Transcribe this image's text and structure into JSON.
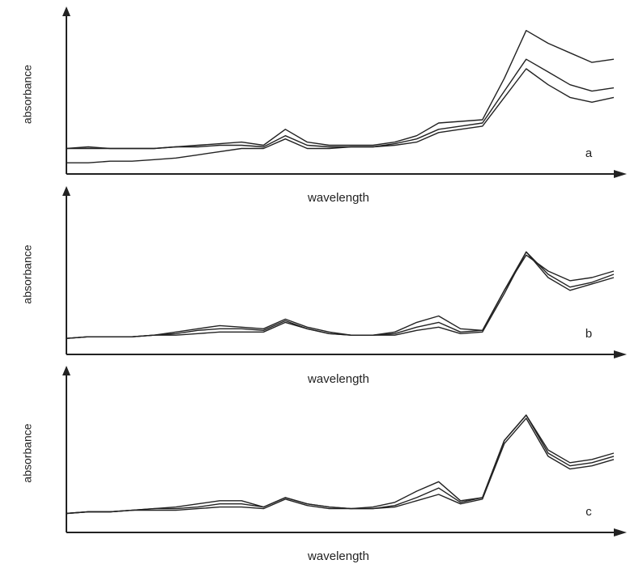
{
  "chart_data": [
    {
      "type": "line",
      "x_label": "wavelength",
      "y_label": "absorbance",
      "annotation": "a",
      "x": [
        0,
        4,
        8,
        12,
        16,
        20,
        24,
        28,
        32,
        36,
        40,
        44,
        48,
        52,
        56,
        60,
        64,
        68,
        72,
        76,
        80,
        84,
        88,
        92,
        96,
        100
      ],
      "xlim": [
        0,
        100
      ],
      "ylim": [
        0,
        100
      ],
      "series": [
        {
          "color": "#222222",
          "values": [
            16,
            17,
            16,
            16,
            16,
            17,
            18,
            19,
            20,
            18,
            28,
            20,
            18,
            18,
            18,
            20,
            24,
            32,
            33,
            34,
            60,
            90,
            82,
            76,
            70,
            72
          ]
        },
        {
          "color": "#222222",
          "values": [
            16,
            16,
            16,
            16,
            16,
            17,
            17,
            18,
            18,
            17,
            24,
            18,
            17,
            17,
            17,
            19,
            22,
            28,
            30,
            32,
            52,
            72,
            64,
            56,
            52,
            54
          ]
        },
        {
          "color": "#222222",
          "values": [
            7,
            7,
            8,
            8,
            9,
            10,
            12,
            14,
            16,
            16,
            22,
            16,
            16,
            17,
            17,
            18,
            20,
            26,
            28,
            30,
            48,
            66,
            56,
            48,
            45,
            48
          ]
        }
      ]
    },
    {
      "type": "line",
      "x_label": "wavelength",
      "y_label": "absorbance",
      "annotation": "b",
      "x": [
        0,
        4,
        8,
        12,
        16,
        20,
        24,
        28,
        32,
        36,
        40,
        44,
        48,
        52,
        56,
        60,
        64,
        68,
        72,
        76,
        80,
        84,
        88,
        92,
        96,
        100
      ],
      "xlim": [
        0,
        100
      ],
      "ylim": [
        0,
        100
      ],
      "series": [
        {
          "color": "#222222",
          "values": [
            10,
            11,
            11,
            11,
            12,
            14,
            16,
            18,
            17,
            16,
            22,
            17,
            14,
            12,
            12,
            14,
            20,
            24,
            16,
            15,
            40,
            62,
            52,
            46,
            48,
            52
          ]
        },
        {
          "color": "#222222",
          "values": [
            10,
            11,
            11,
            11,
            12,
            13,
            15,
            16,
            16,
            15,
            21,
            16,
            13,
            12,
            12,
            13,
            17,
            20,
            14,
            15,
            40,
            64,
            50,
            42,
            45,
            50
          ]
        },
        {
          "color": "#222222",
          "values": [
            10,
            11,
            11,
            11,
            12,
            12,
            13,
            14,
            14,
            14,
            20,
            16,
            13,
            12,
            12,
            12,
            15,
            17,
            13,
            14,
            38,
            64,
            48,
            40,
            44,
            48
          ]
        }
      ]
    },
    {
      "type": "line",
      "x_label": "wavelength",
      "y_label": "absorbance",
      "annotation": "c",
      "x": [
        0,
        4,
        8,
        12,
        16,
        20,
        24,
        28,
        32,
        36,
        40,
        44,
        48,
        52,
        56,
        60,
        64,
        68,
        72,
        76,
        80,
        84,
        88,
        92,
        96,
        100
      ],
      "xlim": [
        0,
        100
      ],
      "ylim": [
        0,
        100
      ],
      "series": [
        {
          "color": "#222222",
          "values": [
            12,
            13,
            13,
            14,
            15,
            16,
            18,
            20,
            20,
            16,
            22,
            18,
            16,
            15,
            16,
            19,
            26,
            32,
            20,
            22,
            58,
            74,
            52,
            44,
            46,
            50
          ]
        },
        {
          "color": "#222222",
          "values": [
            12,
            13,
            13,
            14,
            15,
            15,
            16,
            18,
            18,
            16,
            22,
            18,
            16,
            15,
            15,
            17,
            22,
            28,
            19,
            22,
            58,
            74,
            50,
            42,
            44,
            48
          ]
        },
        {
          "color": "#222222",
          "values": [
            12,
            13,
            13,
            14,
            14,
            14,
            15,
            16,
            16,
            15,
            21,
            17,
            15,
            15,
            15,
            16,
            20,
            24,
            18,
            21,
            56,
            72,
            48,
            40,
            42,
            46
          ]
        }
      ]
    }
  ]
}
